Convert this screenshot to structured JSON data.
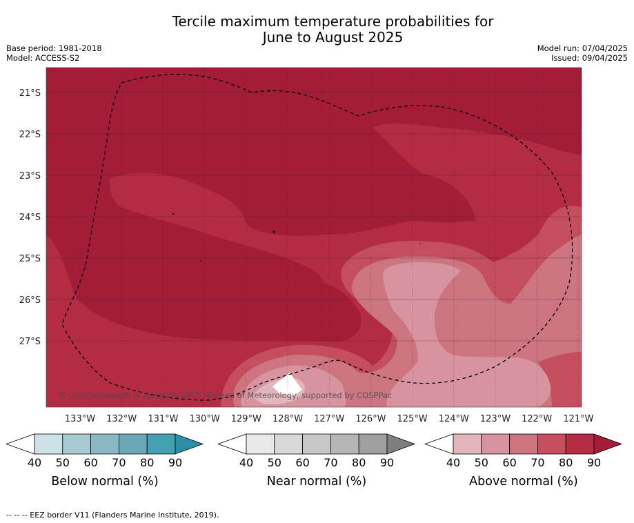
{
  "title": [
    "Tercile maximum temperature probabilities for",
    "June to August 2025"
  ],
  "meta_left": [
    "Base period: 1981-2018",
    "Model: ACCESS-S2"
  ],
  "meta_right": [
    "Model run: 07/04/2025",
    "Issued: 09/04/2025"
  ],
  "copyright": "© Commonwealth of Australia 2025, Bureau of Meteorology, supported by COSPPac",
  "footer": "--  --  -- EEZ border V11 (Flanders Marine Institute, 2019).",
  "map": {
    "lon_labels": [
      "133°W",
      "132°W",
      "131°W",
      "130°W",
      "129°W",
      "128°W",
      "127°W",
      "126°W",
      "125°W",
      "124°W",
      "123°W",
      "122°W",
      "121°W"
    ],
    "lat_labels": [
      "21°S",
      "22°S",
      "23°S",
      "24°S",
      "25°S",
      "26°S",
      "27°S"
    ]
  },
  "colors": {
    "above": [
      "#e3b5bd",
      "#d7949e",
      "#cc7480",
      "#c44d5e",
      "#b32c44",
      "#a31d38"
    ],
    "near": [
      "#e8e8e8",
      "#d8d8d8",
      "#c8c8c8",
      "#b5b5b5",
      "#a0a0a0",
      "#7f7f7f"
    ],
    "below": [
      "#cce2e7",
      "#a8cbd2",
      "#89b8c4",
      "#6aa6b7",
      "#43a1b3",
      "#2b8ea5"
    ]
  },
  "legends": [
    {
      "label": "Below normal (%)",
      "ticks": [
        "40",
        "50",
        "60",
        "70",
        "80",
        "90"
      ],
      "palette": "below"
    },
    {
      "label": "Near normal (%)",
      "ticks": [
        "40",
        "50",
        "60",
        "70",
        "80",
        "90"
      ],
      "palette": "near"
    },
    {
      "label": "Above normal (%)",
      "ticks": [
        "40",
        "50",
        "60",
        "70",
        "80",
        "90"
      ],
      "palette": "above"
    }
  ]
}
